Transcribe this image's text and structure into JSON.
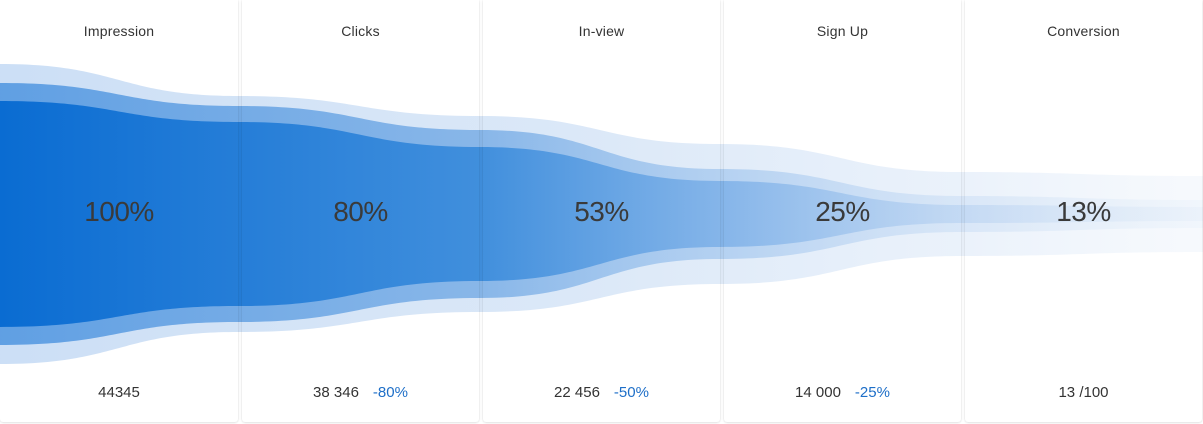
{
  "chart_data": {
    "type": "funnel",
    "stages": [
      {
        "label": "Impression",
        "percent_label": "100%",
        "percent": 100,
        "count": "44345",
        "change": ""
      },
      {
        "label": "Clicks",
        "percent_label": "80%",
        "percent": 80,
        "count": "38 346",
        "change": "-80%"
      },
      {
        "label": "In-view",
        "percent_label": "53%",
        "percent": 53,
        "count": "22 456",
        "change": "-50%"
      },
      {
        "label": "Sign Up",
        "percent_label": "25%",
        "percent": 25,
        "count": "14 000",
        "change": "-25%"
      },
      {
        "label": "Conversion",
        "percent_label": "13%",
        "percent": 13,
        "count": "13 /100",
        "change": ""
      }
    ]
  },
  "colors": {
    "dark_band": "#0a6cd2",
    "mid_band": "#5f9fe0",
    "light_band": "#c9dcf5",
    "change_text": "#1e6fc8"
  }
}
